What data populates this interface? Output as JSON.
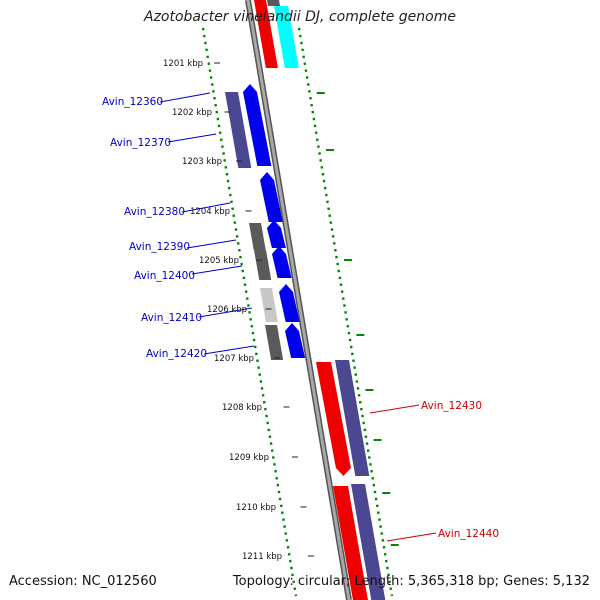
{
  "header": {
    "title": "Azotobacter vinelandii DJ, complete genome"
  },
  "footer": {
    "accession": "Accession: NC_012560",
    "summary": "Topology: circular; Length: 5,365,318 bp; Genes: 5,132"
  },
  "scale": {
    "unit": "kbp",
    "ticks": [
      "1201 kbp",
      "1202 kbp",
      "1203 kbp",
      "1204 kbp",
      "1205 kbp",
      "1206 kbp",
      "1207 kbp",
      "1208 kbp",
      "1209 kbp",
      "1210 kbp",
      "1211 kbp"
    ]
  },
  "colors": {
    "forward_cds": "#0000ee",
    "reverse_cds": "#ee0000",
    "rna": "#00ffff",
    "cog_purple": "#4b4790",
    "cog_gray_dark": "#5a5a5a",
    "cog_gray_light": "#c8c8c8",
    "backbone": "#7a7a7a",
    "gc_dots": "#008800",
    "blue_label": "#0000cc",
    "red_label": "#cc0000"
  },
  "genes": [
    {
      "label": "Avin_12360",
      "strand": "forward"
    },
    {
      "label": "Avin_12370",
      "strand": "forward"
    },
    {
      "label": "Avin_12380",
      "strand": "forward"
    },
    {
      "label": "Avin_12390",
      "strand": "forward"
    },
    {
      "label": "Avin_12400",
      "strand": "forward"
    },
    {
      "label": "Avin_12410",
      "strand": "forward"
    },
    {
      "label": "Avin_12420",
      "strand": "forward"
    },
    {
      "label": "Avin_12430",
      "strand": "reverse"
    },
    {
      "label": "Avin_12440",
      "strand": "reverse"
    }
  ]
}
